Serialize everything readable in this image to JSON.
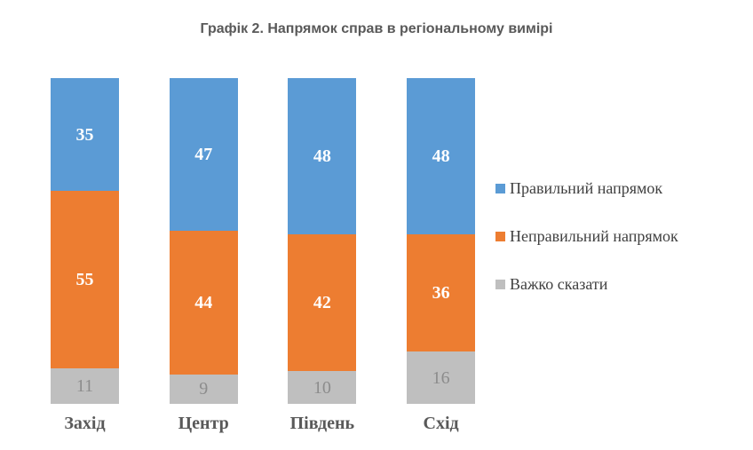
{
  "title": "Графік 2. Напрямок справ в регіональному вимірі",
  "chart_data": {
    "type": "bar",
    "subtype": "stacked-100-percent",
    "orientation": "vertical",
    "title": "Графік 2. Напрямок справ в регіональному вимірі",
    "categories": [
      "Захід",
      "Центр",
      "Південь",
      "Схід"
    ],
    "series": [
      {
        "name": "Правильний напрямок",
        "color": "#5B9BD5",
        "label_color": "#FFFFFF",
        "label_bold": true,
        "values": [
          35,
          47,
          48,
          48
        ]
      },
      {
        "name": "Неправильний напрямок",
        "color": "#ED7D31",
        "label_color": "#FFFFFF",
        "label_bold": true,
        "values": [
          55,
          44,
          42,
          36
        ]
      },
      {
        "name": "Важко сказати",
        "color": "#BFBFBF",
        "label_color": "#8C8C8C",
        "label_bold": false,
        "values": [
          11,
          9,
          10,
          16
        ]
      }
    ],
    "data_labels": true,
    "grid": false,
    "axes_visible": false,
    "legend_position": "right"
  },
  "colors": {
    "background": "#FFFFFF",
    "title_text": "#595959",
    "category_text": "#595959",
    "legend_text": "#404040"
  }
}
